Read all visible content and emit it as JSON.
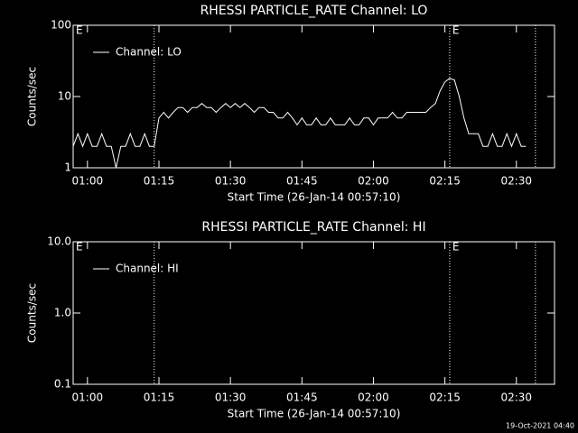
{
  "chart_data": [
    {
      "type": "line",
      "title": "RHESSI PARTICLE_RATE Channel: LO",
      "xlabel": "Start Time (26-Jan-14 00:57:10)",
      "ylabel": "Counts/sec",
      "log_y": true,
      "ylim": [
        1,
        100
      ],
      "yticks": [
        1,
        10,
        100
      ],
      "xlim": [
        "00:57",
        "02:38"
      ],
      "xticks": [
        "01:00",
        "01:15",
        "01:30",
        "01:45",
        "02:00",
        "02:15",
        "02:30"
      ],
      "vlines": [
        "01:14",
        "02:16",
        "02:34"
      ],
      "annotations": [
        {
          "x": "00:57",
          "text": "E"
        },
        {
          "x": "02:16",
          "text": "E"
        }
      ],
      "legend": "upper left",
      "x": [
        "00:57",
        "00:58",
        "00:59",
        "01:00",
        "01:01",
        "01:02",
        "01:03",
        "01:04",
        "01:05",
        "01:06",
        "01:07",
        "01:08",
        "01:09",
        "01:10",
        "01:11",
        "01:12",
        "01:13",
        "01:14",
        "01:15",
        "01:16",
        "01:17",
        "01:18",
        "01:19",
        "01:20",
        "01:21",
        "01:22",
        "01:23",
        "01:24",
        "01:25",
        "01:26",
        "01:27",
        "01:28",
        "01:29",
        "01:30",
        "01:31",
        "01:32",
        "01:33",
        "01:34",
        "01:35",
        "01:36",
        "01:37",
        "01:38",
        "01:39",
        "01:40",
        "01:41",
        "01:42",
        "01:43",
        "01:44",
        "01:45",
        "01:46",
        "01:47",
        "01:48",
        "01:49",
        "01:50",
        "01:51",
        "01:52",
        "01:53",
        "01:54",
        "01:55",
        "01:56",
        "01:57",
        "01:58",
        "01:59",
        "02:00",
        "02:01",
        "02:02",
        "02:03",
        "02:04",
        "02:05",
        "02:06",
        "02:07",
        "02:08",
        "02:09",
        "02:10",
        "02:11",
        "02:12",
        "02:13",
        "02:14",
        "02:15",
        "02:16",
        "02:17",
        "02:18",
        "02:19",
        "02:20",
        "02:21",
        "02:22",
        "02:23",
        "02:24",
        "02:25",
        "02:26",
        "02:27",
        "02:28",
        "02:29",
        "02:30",
        "02:31",
        "02:32"
      ],
      "series": [
        {
          "name": "Channel: LO",
          "color": "#ffffff",
          "values": [
            2,
            3,
            2,
            3,
            2,
            2,
            3,
            2,
            2,
            1,
            2,
            2,
            3,
            2,
            2,
            3,
            2,
            2,
            5,
            6,
            5,
            6,
            7,
            7,
            6,
            7,
            7,
            8,
            7,
            7,
            6,
            7,
            8,
            7,
            8,
            7,
            8,
            7,
            6,
            7,
            7,
            6,
            6,
            5,
            5,
            6,
            5,
            4,
            5,
            4,
            4,
            5,
            4,
            4,
            5,
            4,
            4,
            4,
            5,
            4,
            4,
            5,
            5,
            4,
            5,
            5,
            5,
            6,
            5,
            5,
            6,
            6,
            6,
            6,
            6,
            7,
            8,
            12,
            16,
            18,
            17,
            10,
            5,
            3,
            3,
            3,
            2,
            2,
            3,
            2,
            2,
            3,
            2,
            3,
            2,
            2
          ]
        }
      ]
    },
    {
      "type": "line",
      "title": "RHESSI PARTICLE_RATE Channel: HI",
      "xlabel": "Start Time (26-Jan-14 00:57:10)",
      "ylabel": "Counts/sec",
      "log_y": true,
      "ylim": [
        0.1,
        10
      ],
      "yticks": [
        0.1,
        {
          "value": 1,
          "label": "1.0"
        },
        {
          "value": 10,
          "label": "10.0"
        }
      ],
      "xlim": [
        "00:57",
        "02:38"
      ],
      "xticks": [
        "01:00",
        "01:15",
        "01:30",
        "01:45",
        "02:00",
        "02:15",
        "02:30"
      ],
      "vlines": [
        "01:14",
        "02:16",
        "02:34"
      ],
      "annotations": [
        {
          "x": "00:57",
          "text": "E"
        },
        {
          "x": "02:16",
          "text": "E"
        }
      ],
      "legend": "upper left",
      "x": [],
      "series": [
        {
          "name": "Channel: HI",
          "color": "#ffffff",
          "values": []
        }
      ]
    }
  ],
  "footer": "19-Oct-2021 04:40"
}
